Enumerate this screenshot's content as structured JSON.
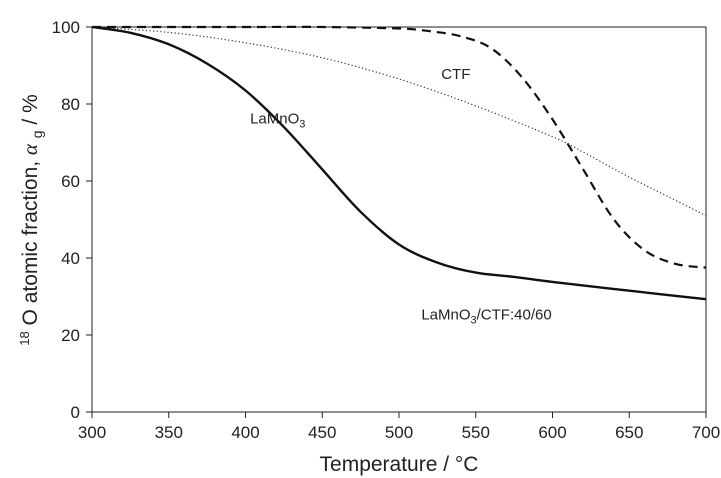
{
  "chart_data": {
    "type": "line",
    "xlabel": "Temperature  / °C",
    "ylabel": {
      "sup": "18",
      "main": "O atomic fraction, ",
      "symbol": "α",
      "sub": "g",
      "unit": " / %"
    },
    "xlim": [
      300,
      700
    ],
    "ylim": [
      0,
      100
    ],
    "x_ticks": [
      "300",
      "350",
      "400",
      "450",
      "500",
      "550",
      "600",
      "650",
      "700"
    ],
    "y_ticks": [
      "0",
      "20",
      "40",
      "60",
      "80",
      "100"
    ],
    "grid": false,
    "legend": "none",
    "series": [
      {
        "name": "CTF",
        "label": {
          "main": "CTF",
          "sub": "",
          "rest": ""
        },
        "line_style": "dashed",
        "color": "#111111",
        "x": [
          300,
          350,
          400,
          450,
          500,
          520,
          540,
          560,
          580,
          600,
          620,
          640,
          660,
          680,
          700
        ],
        "y": [
          100,
          100,
          100,
          100,
          99.6,
          98.9,
          97.6,
          94.5,
          87,
          76,
          63,
          50,
          42,
          38.5,
          37.5
        ]
      },
      {
        "name": "LaMnO3",
        "label": {
          "main": "LaMnO",
          "sub": "3",
          "rest": ""
        },
        "line_style": "dotted",
        "color": "#333333",
        "x": [
          300,
          350,
          400,
          450,
          500,
          550,
          600,
          620,
          650,
          675,
          700
        ],
        "y": [
          100,
          98.6,
          95.9,
          92,
          86.5,
          79.5,
          71.5,
          67.5,
          61,
          56,
          51
        ]
      },
      {
        "name": "LaMnO3/CTF:40/60",
        "label": {
          "main": "LaMnO",
          "sub": "3",
          "rest": "/CTF:40/60"
        },
        "line_style": "solid",
        "color": "#111111",
        "x": [
          300,
          325,
          350,
          375,
          400,
          425,
          450,
          475,
          500,
          525,
          550,
          575,
          600,
          650,
          700
        ],
        "y": [
          100,
          98.5,
          95.5,
          90.5,
          83.5,
          74,
          63,
          52,
          43.5,
          38.8,
          36.2,
          35.1,
          33.8,
          31.5,
          29.3
        ]
      }
    ]
  }
}
